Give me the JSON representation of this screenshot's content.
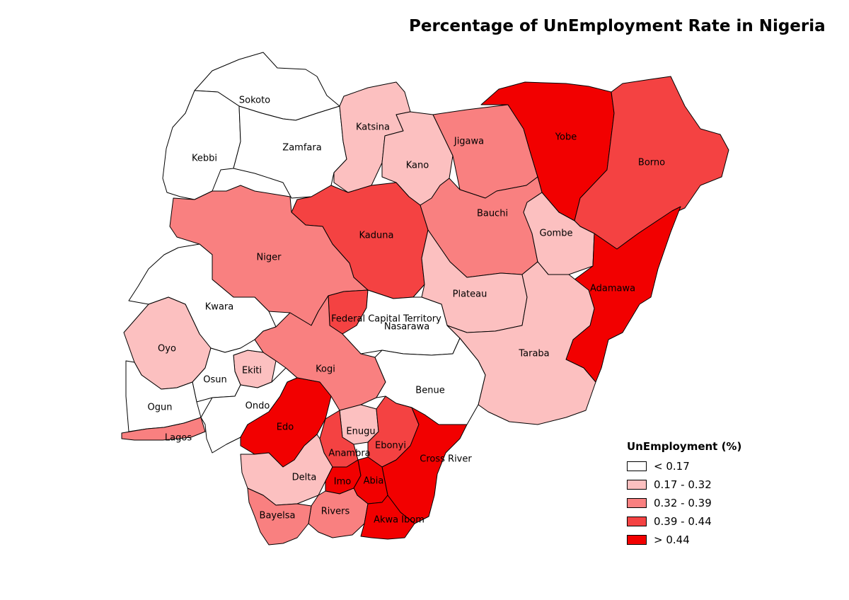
{
  "title": "Percentage of UnEmployment Rate in Nigeria",
  "colors": {
    "c0": "#ffffff",
    "c1": "#fcc0c0",
    "c2": "#f98080",
    "c3": "#f44242",
    "c4": "#f20000",
    "border": "#000000"
  },
  "legend": {
    "title": "UnEmployment (%)",
    "classes": [
      {
        "label": "< 0.17",
        "color": "#ffffff"
      },
      {
        "label": "0.17 - 0.32",
        "color": "#fcc0c0"
      },
      {
        "label": "0.32 - 0.39",
        "color": "#f98080"
      },
      {
        "label": "0.39 - 0.44",
        "color": "#f44242"
      },
      {
        "label": "> 0.44",
        "color": "#f20000"
      }
    ]
  },
  "states": [
    {
      "name": "Sokoto",
      "class": 0
    },
    {
      "name": "Kebbi",
      "class": 0
    },
    {
      "name": "Zamfara",
      "class": 0
    },
    {
      "name": "Katsina",
      "class": 1
    },
    {
      "name": "Kano",
      "class": 1
    },
    {
      "name": "Jigawa",
      "class": 2
    },
    {
      "name": "Yobe",
      "class": 4
    },
    {
      "name": "Borno",
      "class": 3
    },
    {
      "name": "Kaduna",
      "class": 3
    },
    {
      "name": "Bauchi",
      "class": 2
    },
    {
      "name": "Gombe",
      "class": 1
    },
    {
      "name": "Niger",
      "class": 2
    },
    {
      "name": "Adamawa",
      "class": 4
    },
    {
      "name": "Kwara",
      "class": 0
    },
    {
      "name": "Plateau",
      "class": 1
    },
    {
      "name": "Federal Capital Territory",
      "class": 3
    },
    {
      "name": "Nasarawa",
      "class": 0
    },
    {
      "name": "Oyo",
      "class": 1
    },
    {
      "name": "Taraba",
      "class": 1
    },
    {
      "name": "Ekiti",
      "class": 1
    },
    {
      "name": "Kogi",
      "class": 2
    },
    {
      "name": "Osun",
      "class": 0
    },
    {
      "name": "Benue",
      "class": 0
    },
    {
      "name": "Ogun",
      "class": 0
    },
    {
      "name": "Ondo",
      "class": 0
    },
    {
      "name": "Edo",
      "class": 4
    },
    {
      "name": "Enugu",
      "class": 1
    },
    {
      "name": "Lagos",
      "class": 2
    },
    {
      "name": "Anambra",
      "class": 3
    },
    {
      "name": "Ebonyi",
      "class": 3
    },
    {
      "name": "Cross River",
      "class": 4
    },
    {
      "name": "Delta",
      "class": 1
    },
    {
      "name": "Imo",
      "class": 4
    },
    {
      "name": "Abia",
      "class": 4
    },
    {
      "name": "Rivers",
      "class": 2
    },
    {
      "name": "Akwa Ibom",
      "class": 4
    },
    {
      "name": "Bayelsa",
      "class": 2
    }
  ]
}
